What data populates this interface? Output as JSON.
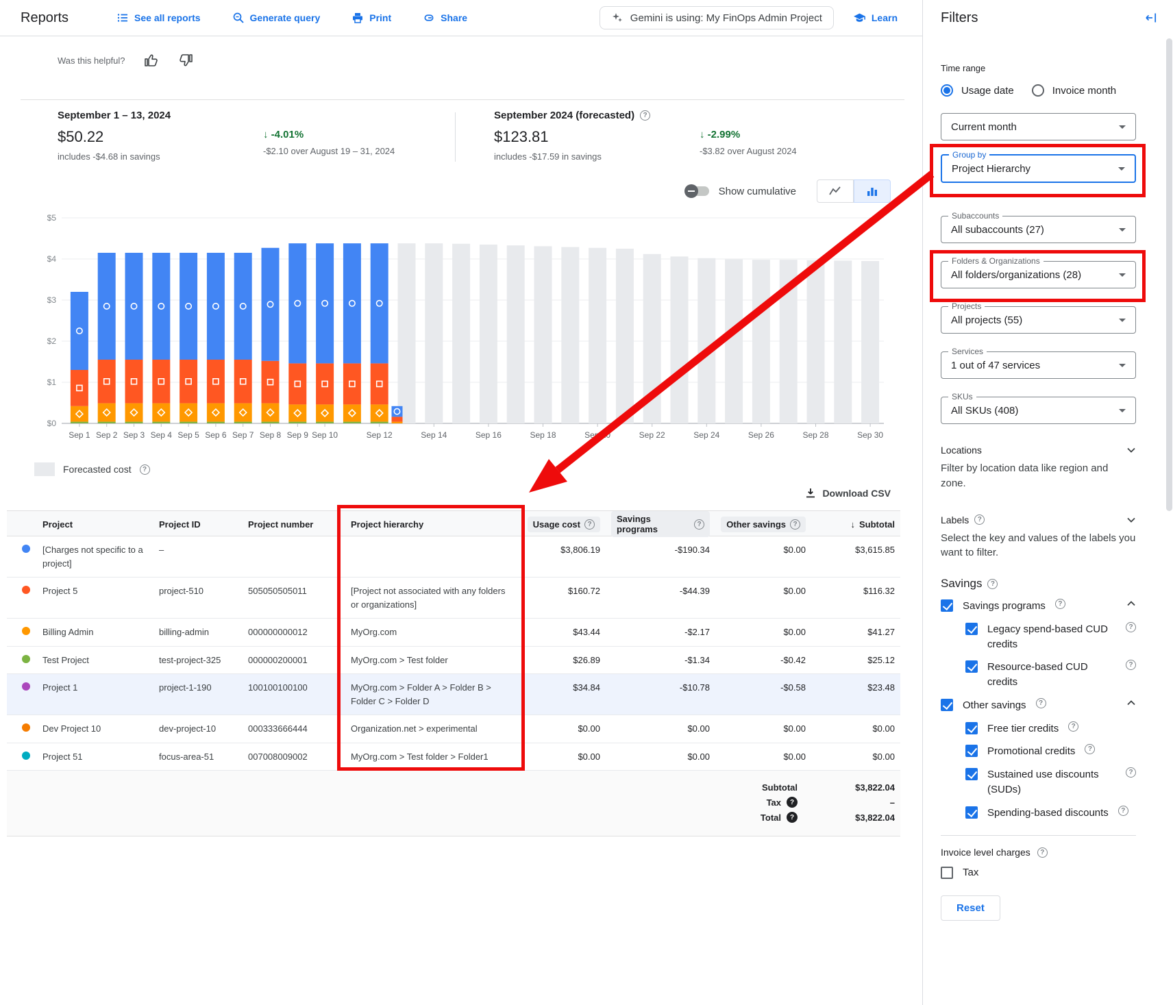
{
  "topbar": {
    "title": "Reports",
    "see_all_reports": "See all reports",
    "generate_query": "Generate query",
    "print": "Print",
    "share": "Share",
    "gemini_text": "Gemini is using: My FinOps Admin Project",
    "learn": "Learn"
  },
  "feedback": {
    "question": "Was this helpful?"
  },
  "summary": {
    "current": {
      "title": "September 1 – 13, 2024",
      "amount": "$50.22",
      "subtext": "includes -$4.68 in savings",
      "delta": "-4.01%",
      "delta_sub": "-$2.10 over August 19 – 31, 2024"
    },
    "forecast": {
      "title": "September 2024 (forecasted)",
      "amount": "$123.81",
      "subtext": "includes -$17.59 in savings",
      "delta": "-2.99%",
      "delta_sub": "-$3.82 over August 2024"
    }
  },
  "chart_controls": {
    "show_cumulative": "Show cumulative"
  },
  "chart_data": {
    "type": "bar",
    "stacked": true,
    "ylim": [
      0,
      5
    ],
    "y_ticks": [
      "$0",
      "$1",
      "$2",
      "$3",
      "$4",
      "$5"
    ],
    "x_tick_days": [
      1,
      2,
      3,
      4,
      5,
      6,
      7,
      8,
      9,
      10,
      12,
      14,
      16,
      18,
      20,
      22,
      24,
      26,
      28,
      30
    ],
    "x_tick_prefix": "Sep",
    "series": [
      {
        "name": "green-segment",
        "color": "#7cb342",
        "marker": "none",
        "values": [
          0.04,
          0.04,
          0.04,
          0.04,
          0.04,
          0.04,
          0.04,
          0.04,
          0.04,
          0.04,
          0.04,
          0.04,
          0,
          0,
          0,
          0,
          0,
          0,
          0,
          0,
          0,
          0,
          0,
          0,
          0,
          0,
          0,
          0,
          0,
          0
        ]
      },
      {
        "name": "amber-segment",
        "color": "#ff9800",
        "marker": "diamond",
        "values": [
          0.38,
          0.45,
          0.45,
          0.45,
          0.45,
          0.45,
          0.45,
          0.45,
          0.42,
          0.42,
          0.42,
          0.42,
          0.04,
          0,
          0,
          0,
          0,
          0,
          0,
          0,
          0,
          0,
          0,
          0,
          0,
          0,
          0,
          0,
          0,
          0
        ]
      },
      {
        "name": "orange-segment",
        "color": "#ff5722",
        "marker": "square",
        "values": [
          0.88,
          1.06,
          1.06,
          1.06,
          1.06,
          1.06,
          1.06,
          1.03,
          1.0,
          1.0,
          1.0,
          1.0,
          0.12,
          0,
          0,
          0,
          0,
          0,
          0,
          0,
          0,
          0,
          0,
          0,
          0,
          0,
          0,
          0,
          0,
          0
        ]
      },
      {
        "name": "blue-segment",
        "color": "#4285f4",
        "marker": "circle",
        "values": [
          1.9,
          2.6,
          2.6,
          2.6,
          2.6,
          2.6,
          2.6,
          2.75,
          2.92,
          2.92,
          2.92,
          2.92,
          0.26,
          0,
          0,
          0,
          0,
          0,
          0,
          0,
          0,
          0,
          0,
          0,
          0,
          0,
          0,
          0,
          0,
          0
        ]
      }
    ],
    "forecast": {
      "name": "Forecasted cost",
      "color": "#e8eaed",
      "values": [
        0,
        0,
        0,
        0,
        0,
        0,
        0,
        0,
        0,
        0,
        0,
        0,
        4.38,
        4.38,
        4.37,
        4.35,
        4.33,
        4.31,
        4.29,
        4.27,
        4.25,
        4.12,
        4.06,
        4.02,
        3.99,
        3.98,
        3.98,
        3.97,
        3.96,
        3.95
      ]
    },
    "legend": [
      {
        "label": "Forecasted cost",
        "color": "#e8eaed"
      }
    ]
  },
  "download_csv": "Download CSV",
  "table": {
    "headers": [
      "Project",
      "Project ID",
      "Project number",
      "Project hierarchy",
      "Usage cost",
      "Savings programs",
      "Other savings",
      "Subtotal"
    ],
    "rows": [
      {
        "color": "#4285f4",
        "project": "[Charges not specific to a project]",
        "id": "–",
        "number": "",
        "hierarchy": "",
        "usage": "$3,806.19",
        "savings": "-$190.34",
        "other": "$0.00",
        "subtotal": "$3,615.85",
        "highlight": false
      },
      {
        "color": "#ff5722",
        "project": "Project 5",
        "id": "project-510",
        "number": "505050505011",
        "hierarchy": "[Project not associated with any folders or organizations]",
        "usage": "$160.72",
        "savings": "-$44.39",
        "other": "$0.00",
        "subtotal": "$116.32",
        "highlight": false
      },
      {
        "color": "#ff9800",
        "project": "Billing Admin",
        "id": "billing-admin",
        "number": "000000000012",
        "hierarchy": "MyOrg.com",
        "usage": "$43.44",
        "savings": "-$2.17",
        "other": "$0.00",
        "subtotal": "$41.27",
        "highlight": false
      },
      {
        "color": "#7cb342",
        "project": "Test Project",
        "id": "test-project-325",
        "number": "000000200001",
        "hierarchy": "MyOrg.com > Test folder",
        "usage": "$26.89",
        "savings": "-$1.34",
        "other": "-$0.42",
        "subtotal": "$25.12",
        "highlight": false
      },
      {
        "color": "#ab47bc",
        "project": "Project 1",
        "id": "project-1-190",
        "number": "100100100100",
        "hierarchy": "MyOrg.com > Folder A > Folder B > Folder C > Folder D",
        "usage": "$34.84",
        "savings": "-$10.78",
        "other": "-$0.58",
        "subtotal": "$23.48",
        "highlight": true
      },
      {
        "color": "#f57c00",
        "project": "Dev Project 10",
        "id": "dev-project-10",
        "number": "000333666444",
        "hierarchy": "Organization.net > experimental",
        "usage": "$0.00",
        "savings": "$0.00",
        "other": "$0.00",
        "subtotal": "$0.00",
        "highlight": false
      },
      {
        "color": "#00acc1",
        "project": "Project 51",
        "id": "focus-area-51",
        "number": "007008009002",
        "hierarchy": "MyOrg.com > Test folder > Folder1",
        "usage": "$0.00",
        "savings": "$0.00",
        "other": "$0.00",
        "subtotal": "$0.00",
        "highlight": false
      }
    ],
    "footer": {
      "subtotal_label": "Subtotal",
      "subtotal": "$3,822.04",
      "tax_label": "Tax",
      "tax": "–",
      "total_label": "Total",
      "total": "$3,822.04"
    }
  },
  "filters": {
    "title": "Filters",
    "time_range_label": "Time range",
    "radio_usage": "Usage date",
    "radio_invoice": "Invoice month",
    "current_month": {
      "value": "Current month"
    },
    "group_by": {
      "label": "Group by",
      "value": "Project Hierarchy"
    },
    "subaccounts": {
      "label": "Subaccounts",
      "value": "All subaccounts (27)"
    },
    "folders": {
      "label": "Folders & Organizations",
      "value": "All folders/organizations (28)"
    },
    "projects": {
      "label": "Projects",
      "value": "All projects (55)"
    },
    "services": {
      "label": "Services",
      "value": "1 out of 47 services"
    },
    "skus": {
      "label": "SKUs",
      "value": "All SKUs (408)"
    },
    "locations": {
      "title": "Locations",
      "desc": "Filter by location data like region and zone."
    },
    "labels": {
      "title": "Labels",
      "desc": "Select the key and values of the labels you want to filter."
    },
    "savings": {
      "title": "Savings",
      "programs": {
        "label": "Savings programs",
        "children": [
          {
            "label": "Legacy spend-based CUD credits"
          },
          {
            "label": "Resource-based CUD credits"
          }
        ]
      },
      "other": {
        "label": "Other savings",
        "children": [
          {
            "label": "Free tier credits"
          },
          {
            "label": "Promotional credits"
          },
          {
            "label": "Sustained use discounts (SUDs)"
          },
          {
            "label": "Spending-based discounts"
          }
        ]
      }
    },
    "invoice_level": {
      "label": "Invoice level charges",
      "tax": "Tax"
    },
    "reset": "Reset"
  },
  "annotations": {
    "color": "#ee0b0b",
    "highlighted": [
      "Group by dropdown",
      "Folders & Organizations dropdown",
      "Project hierarchy column"
    ]
  },
  "icons": {
    "list": "menu-lines",
    "query": "magnifier",
    "print": "printer",
    "share": "link",
    "gemini": "sparkle",
    "learn": "graduation-cap",
    "collapse": "arrow-to-bar",
    "help": "?",
    "download": "arrow-into-tray",
    "sort_desc": "↓",
    "delta_down": "↓",
    "thumb_up": "thumb-up",
    "thumb_down": "thumb-down"
  }
}
